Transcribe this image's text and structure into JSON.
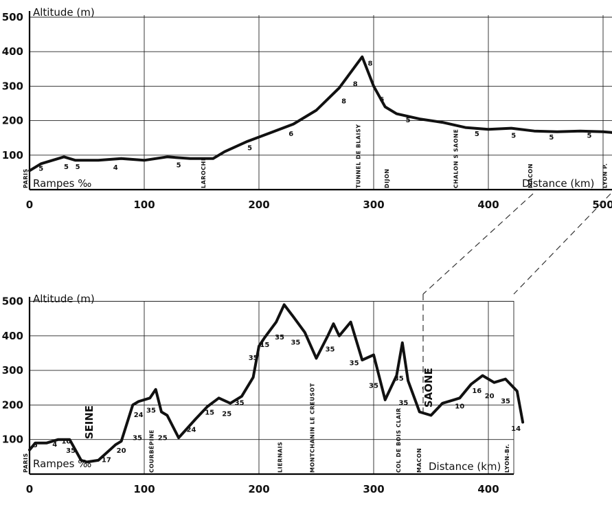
{
  "chart_data": [
    {
      "type": "line",
      "ylabel": "Altitude (m)",
      "xlabel": "Distance (km)",
      "ramps_label": "Rampes ‰",
      "xlim": [
        0,
        510
      ],
      "ylim": [
        0,
        500
      ],
      "x_ticks": [
        0,
        100,
        200,
        300,
        400,
        500
      ],
      "y_ticks": [
        100,
        200,
        300,
        400,
        500
      ],
      "grid": true,
      "series": [
        {
          "x": [
            0,
            10,
            20,
            30,
            40,
            60,
            80,
            100,
            120,
            140,
            160,
            170,
            190,
            210,
            230,
            250,
            270,
            280,
            290,
            300,
            310,
            320,
            340,
            360,
            380,
            400,
            420,
            440,
            460,
            480,
            500,
            510
          ],
          "y": [
            55,
            75,
            85,
            95,
            85,
            85,
            90,
            85,
            95,
            90,
            90,
            110,
            140,
            165,
            190,
            230,
            295,
            340,
            385,
            300,
            240,
            220,
            205,
            195,
            180,
            175,
            178,
            170,
            168,
            170,
            168,
            165
          ]
        }
      ],
      "ramps": [
        {
          "x": 10,
          "y": 55,
          "label": "5"
        },
        {
          "x": 32,
          "y": 60,
          "label": "5"
        },
        {
          "x": 42,
          "y": 60,
          "label": "5"
        },
        {
          "x": 75,
          "y": 58,
          "label": "4"
        },
        {
          "x": 130,
          "y": 65,
          "label": "5"
        },
        {
          "x": 192,
          "y": 115,
          "label": "5"
        },
        {
          "x": 228,
          "y": 155,
          "label": "6"
        },
        {
          "x": 274,
          "y": 250,
          "label": "8"
        },
        {
          "x": 284,
          "y": 300,
          "label": "8"
        },
        {
          "x": 297,
          "y": 360,
          "label": "8"
        },
        {
          "x": 307,
          "y": 255,
          "label": "6"
        },
        {
          "x": 330,
          "y": 195,
          "label": "5"
        },
        {
          "x": 390,
          "y": 155,
          "label": "5"
        },
        {
          "x": 422,
          "y": 150,
          "label": "5"
        },
        {
          "x": 455,
          "y": 145,
          "label": "5"
        },
        {
          "x": 488,
          "y": 150,
          "label": "5"
        }
      ],
      "places": [
        {
          "x": 0,
          "label": "PARIS"
        },
        {
          "x": 155,
          "label": "LAROCHE"
        },
        {
          "x": 290,
          "label": "TUNNEL DE BLAISY"
        },
        {
          "x": 315,
          "label": "DIJON"
        },
        {
          "x": 375,
          "label": "CHALON S SAONE"
        },
        {
          "x": 440,
          "label": "MACON"
        },
        {
          "x": 505,
          "label": "LYON P."
        }
      ]
    },
    {
      "type": "line",
      "ylabel": "Altitude (m)",
      "xlabel": "Distance (km)",
      "ramps_label": "Rampes ‰",
      "xlim": [
        0,
        430
      ],
      "ylim": [
        0,
        500
      ],
      "x_ticks": [
        0,
        100,
        200,
        300,
        400
      ],
      "y_ticks": [
        100,
        200,
        300,
        400,
        500
      ],
      "grid": true,
      "series": [
        {
          "x": [
            0,
            5,
            15,
            25,
            35,
            45,
            50,
            60,
            70,
            75,
            80,
            90,
            95,
            105,
            110,
            115,
            120,
            130,
            145,
            155,
            165,
            175,
            185,
            195,
            200,
            205,
            215,
            222,
            230,
            240,
            250,
            260,
            265,
            270,
            280,
            290,
            300,
            310,
            320,
            325,
            330,
            340,
            350,
            360,
            370,
            375,
            385,
            395,
            405,
            415,
            425,
            430
          ],
          "y": [
            70,
            90,
            90,
            100,
            100,
            40,
            35,
            40,
            70,
            85,
            95,
            200,
            210,
            220,
            245,
            180,
            170,
            105,
            160,
            195,
            220,
            205,
            225,
            280,
            370,
            395,
            440,
            490,
            455,
            410,
            335,
            400,
            435,
            400,
            440,
            330,
            345,
            215,
            285,
            380,
            270,
            180,
            170,
            205,
            215,
            220,
            260,
            285,
            265,
            275,
            240,
            150
          ]
        }
      ],
      "ramps": [
        {
          "x": 5,
          "y": 78,
          "label": "5"
        },
        {
          "x": 22,
          "y": 80,
          "label": "4"
        },
        {
          "x": 32,
          "y": 88,
          "label": "10"
        },
        {
          "x": 36,
          "y": 62,
          "label": "35"
        },
        {
          "x": 67,
          "y": 35,
          "label": "17"
        },
        {
          "x": 80,
          "y": 62,
          "label": "20"
        },
        {
          "x": 94,
          "y": 98,
          "label": "35"
        },
        {
          "x": 95,
          "y": 165,
          "label": "24"
        },
        {
          "x": 106,
          "y": 178,
          "label": "35"
        },
        {
          "x": 116,
          "y": 98,
          "label": "25"
        },
        {
          "x": 141,
          "y": 122,
          "label": "24"
        },
        {
          "x": 157,
          "y": 172,
          "label": "15"
        },
        {
          "x": 172,
          "y": 168,
          "label": "25"
        },
        {
          "x": 183,
          "y": 200,
          "label": "35"
        },
        {
          "x": 195,
          "y": 330,
          "label": "35"
        },
        {
          "x": 205,
          "y": 368,
          "label": "15"
        },
        {
          "x": 218,
          "y": 390,
          "label": "35"
        },
        {
          "x": 232,
          "y": 375,
          "label": "35"
        },
        {
          "x": 262,
          "y": 355,
          "label": "35"
        },
        {
          "x": 283,
          "y": 315,
          "label": "35"
        },
        {
          "x": 300,
          "y": 250,
          "label": "35"
        },
        {
          "x": 322,
          "y": 270,
          "label": "35"
        },
        {
          "x": 326,
          "y": 200,
          "label": "35"
        },
        {
          "x": 375,
          "y": 190,
          "label": "10"
        },
        {
          "x": 390,
          "y": 235,
          "label": "16"
        },
        {
          "x": 401,
          "y": 220,
          "label": "20"
        },
        {
          "x": 415,
          "y": 205,
          "label": "35"
        },
        {
          "x": 424,
          "y": 125,
          "label": "14"
        }
      ],
      "places": [
        {
          "x": 0,
          "label": "PARIS"
        },
        {
          "x": 110,
          "label": "COURBÉPINE"
        },
        {
          "x": 222,
          "label": "LIERNAIS"
        },
        {
          "x": 250,
          "label": "MONTCHANIN LE CREUSOT"
        },
        {
          "x": 325,
          "label": "COL DE BOIS CLAIR"
        },
        {
          "x": 343,
          "label": "MACON"
        },
        {
          "x": 425,
          "label": "LYON-Br."
        }
      ],
      "rivers": [
        {
          "x": 55,
          "y": 150,
          "label": "SEINE"
        },
        {
          "x": 351,
          "y": 250,
          "label": "SAÔNE"
        }
      ]
    }
  ]
}
